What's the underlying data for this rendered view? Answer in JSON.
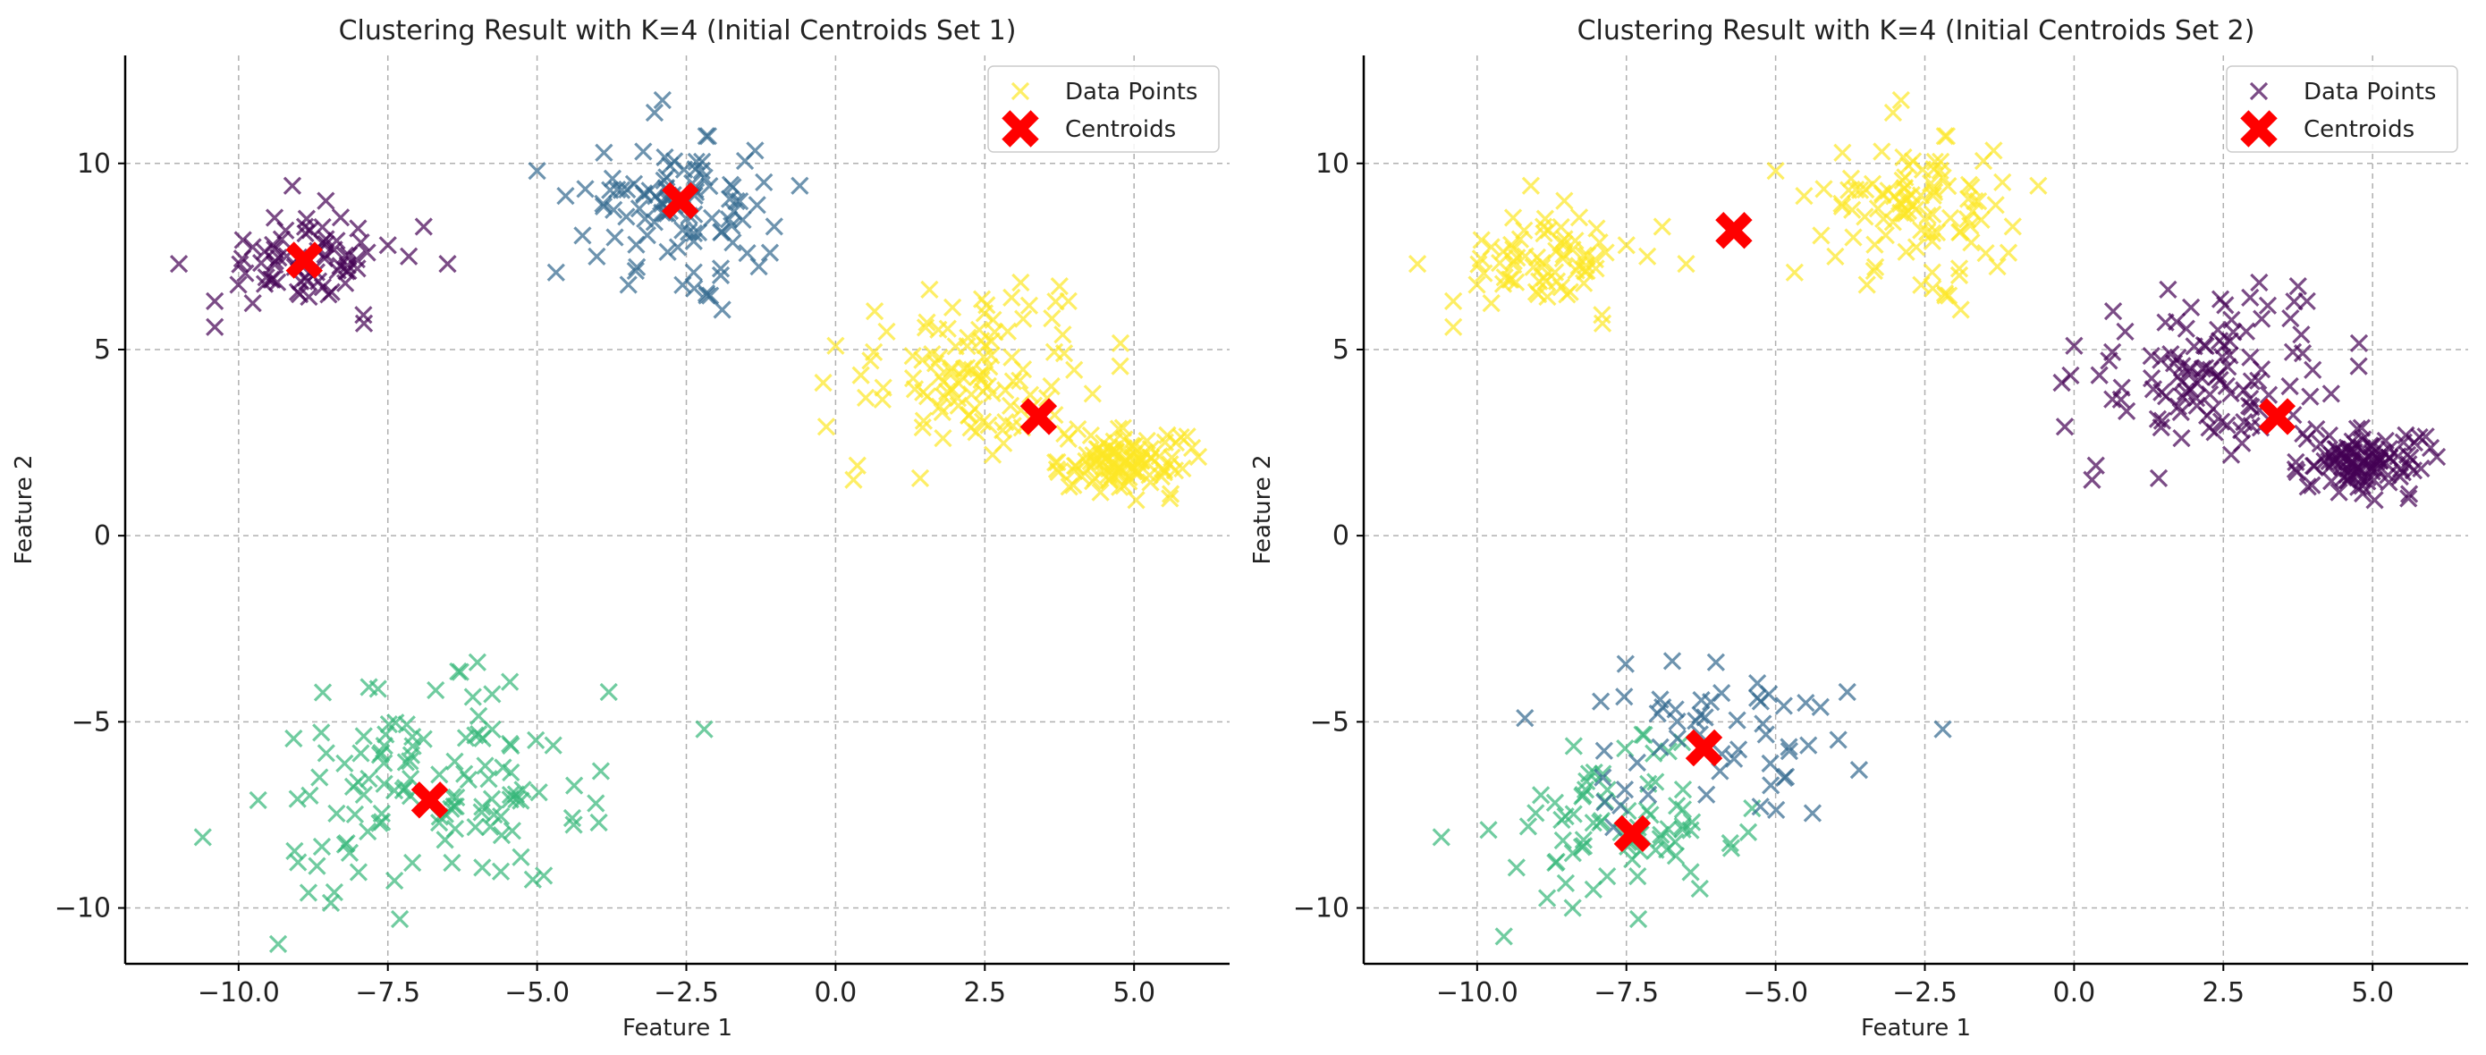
{
  "chart_data": [
    {
      "type": "scatter",
      "title": "Clustering Result with K=4 (Initial Centroids Set 1)",
      "xlabel": "Feature 1",
      "ylabel": "Feature 2",
      "xlim": [
        -11.9,
        6.6
      ],
      "ylim": [
        -11.5,
        12.9
      ],
      "xticks": [
        -10.0,
        -7.5,
        -5.0,
        -2.5,
        0.0,
        2.5,
        5.0
      ],
      "xtick_labels": [
        "−10.0",
        "−7.5",
        "−5.0",
        "−2.5",
        "0.0",
        "2.5",
        "5.0"
      ],
      "yticks": [
        -10,
        -5,
        0,
        5,
        10
      ],
      "ytick_labels": [
        "−10",
        "−5",
        "0",
        "5",
        "10"
      ],
      "grid": true,
      "legend_position": "top-right",
      "legend": [
        {
          "label": "Data Points",
          "marker": "x",
          "color": "#fde725"
        },
        {
          "label": "Centroids",
          "marker": "X",
          "color": "#ff0000"
        }
      ],
      "clusters": [
        {
          "color": "#440154",
          "center": [
            -8.9,
            7.4
          ],
          "spread": [
            0.75,
            0.65
          ],
          "count": 70,
          "extra": [
            [
              -11.0,
              7.3
            ],
            [
              -10.4,
              6.3
            ],
            [
              -9.1,
              9.4
            ],
            [
              -6.5,
              7.3
            ],
            [
              -6.9,
              8.3
            ],
            [
              -7.9,
              5.7
            ]
          ]
        },
        {
          "color": "#31688e",
          "center": [
            -2.6,
            8.9
          ],
          "spread": [
            0.8,
            0.9
          ],
          "count": 100,
          "extra": [
            [
              -5.0,
              9.8
            ],
            [
              -0.6,
              9.4
            ],
            [
              -2.9,
              11.7
            ],
            [
              -1.1,
              7.6
            ],
            [
              -4.0,
              7.5
            ]
          ]
        },
        {
          "color": "#35b779",
          "center": [
            -6.8,
            -7.1
          ],
          "spread": [
            1.3,
            1.35
          ],
          "count": 120,
          "extra": [
            [
              -10.6,
              -8.1
            ],
            [
              -3.8,
              -4.2
            ],
            [
              -2.2,
              -5.2
            ],
            [
              -7.3,
              -10.3
            ],
            [
              -6.0,
              -3.4
            ]
          ]
        },
        {
          "color": "#fde725",
          "center": [
            2.4,
            4.4
          ],
          "spread": [
            1.1,
            1.1
          ],
          "count": 110,
          "extra": [
            [
              0.3,
              1.5
            ],
            [
              0.0,
              5.1
            ],
            [
              3.1,
              6.8
            ],
            [
              3.9,
              6.3
            ]
          ]
        },
        {
          "color": "#fde725",
          "center": [
            4.8,
            2.0
          ],
          "spread": [
            0.5,
            0.4
          ],
          "count": 100,
          "extra": [
            [
              5.6,
              1.0
            ],
            [
              5.7,
              2.5
            ],
            [
              3.9,
              2.6
            ]
          ]
        }
      ],
      "centroids": [
        [
          -8.9,
          7.4
        ],
        [
          -2.6,
          9.0
        ],
        [
          -6.8,
          -7.1
        ],
        [
          3.4,
          3.2
        ]
      ]
    },
    {
      "type": "scatter",
      "title": "Clustering Result with K=4 (Initial Centroids Set 2)",
      "xlabel": "Feature 1",
      "ylabel": "Feature 2",
      "xlim": [
        -11.9,
        6.6
      ],
      "ylim": [
        -11.5,
        12.9
      ],
      "xticks": [
        -10.0,
        -7.5,
        -5.0,
        -2.5,
        0.0,
        2.5,
        5.0
      ],
      "xtick_labels": [
        "−10.0",
        "−7.5",
        "−5.0",
        "−2.5",
        "0.0",
        "2.5",
        "5.0"
      ],
      "yticks": [
        -10,
        -5,
        0,
        5,
        10
      ],
      "ytick_labels": [
        "−10",
        "−5",
        "0",
        "5",
        "10"
      ],
      "grid": true,
      "legend_position": "top-right",
      "legend": [
        {
          "label": "Data Points",
          "marker": "x",
          "color": "#440154"
        },
        {
          "label": "Centroids",
          "marker": "X",
          "color": "#ff0000"
        }
      ],
      "clusters": [
        {
          "color": "#fde725",
          "center": [
            -8.9,
            7.4
          ],
          "spread": [
            0.75,
            0.65
          ],
          "count": 70,
          "extra": [
            [
              -11.0,
              7.3
            ],
            [
              -10.4,
              6.3
            ],
            [
              -9.1,
              9.4
            ],
            [
              -6.5,
              7.3
            ],
            [
              -6.9,
              8.3
            ],
            [
              -7.9,
              5.7
            ]
          ]
        },
        {
          "color": "#fde725",
          "center": [
            -2.6,
            8.9
          ],
          "spread": [
            0.8,
            0.9
          ],
          "count": 100,
          "extra": [
            [
              -5.0,
              9.8
            ],
            [
              -0.6,
              9.4
            ],
            [
              -2.9,
              11.7
            ],
            [
              -1.1,
              7.6
            ],
            [
              -4.0,
              7.5
            ]
          ]
        },
        {
          "color": "#35b779",
          "center": [
            -7.6,
            -7.9
          ],
          "spread": [
            1.0,
            1.0
          ],
          "count": 75,
          "extra": [
            [
              -10.6,
              -8.1
            ],
            [
              -7.3,
              -10.3
            ],
            [
              -8.4,
              -10.0
            ]
          ]
        },
        {
          "color": "#31688e",
          "center": [
            -6.0,
            -5.8
          ],
          "spread": [
            1.1,
            1.1
          ],
          "count": 55,
          "extra": [
            [
              -3.8,
              -4.2
            ],
            [
              -2.2,
              -5.2
            ],
            [
              -6.0,
              -3.4
            ],
            [
              -9.2,
              -4.9
            ]
          ]
        },
        {
          "color": "#440154",
          "center": [
            2.4,
            4.4
          ],
          "spread": [
            1.1,
            1.1
          ],
          "count": 110,
          "extra": [
            [
              0.3,
              1.5
            ],
            [
              0.0,
              5.1
            ],
            [
              3.1,
              6.8
            ],
            [
              3.9,
              6.3
            ]
          ]
        },
        {
          "color": "#440154",
          "center": [
            4.8,
            2.0
          ],
          "spread": [
            0.5,
            0.4
          ],
          "count": 100,
          "extra": [
            [
              5.6,
              1.0
            ],
            [
              5.7,
              2.5
            ],
            [
              3.9,
              2.6
            ]
          ]
        }
      ],
      "centroids": [
        [
          -5.7,
          8.2
        ],
        [
          3.4,
          3.2
        ],
        [
          -7.4,
          -8.0
        ],
        [
          -6.2,
          -5.7
        ]
      ]
    }
  ]
}
